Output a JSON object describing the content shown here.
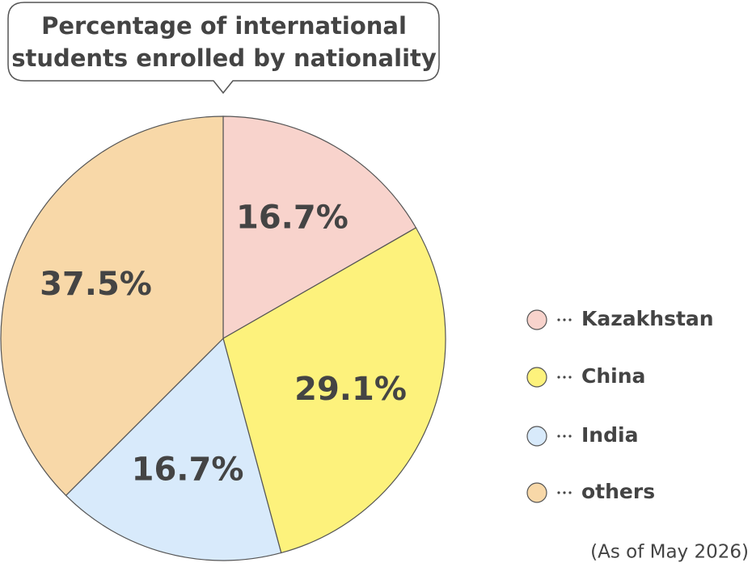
{
  "chart_data": {
    "type": "pie",
    "title": "Percentage of international students enrolled by nationality",
    "categories": [
      "Kazakhstan",
      "China",
      "India",
      "others"
    ],
    "values": [
      16.7,
      29.1,
      16.7,
      37.5
    ],
    "value_labels": [
      "16.7%",
      "29.1%",
      "16.7%",
      "37.5%"
    ],
    "colors": [
      "#f8d3cc",
      "#fdf27c",
      "#d8eafb",
      "#f8d8a8"
    ],
    "annotation": "(As of May 2026)"
  }
}
